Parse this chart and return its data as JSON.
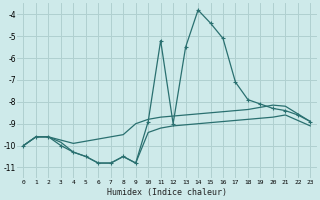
{
  "xlabel": "Humidex (Indice chaleur)",
  "bg_color": "#ceeaea",
  "grid_color": "#b0d0d0",
  "line_color": "#2a7070",
  "y_main": [
    -10.0,
    -9.6,
    -9.6,
    -10.0,
    -10.3,
    -10.5,
    -10.8,
    -10.8,
    -10.5,
    -10.8,
    -8.9,
    -5.2,
    -9.0,
    -5.5,
    -3.8,
    -4.4,
    -5.1,
    -7.1,
    -7.9,
    -8.1,
    -8.3,
    -8.4,
    -8.6,
    -8.9
  ],
  "y_upper": [
    -10.0,
    -9.6,
    -9.6,
    -9.75,
    -9.9,
    -9.8,
    -9.7,
    -9.6,
    -9.5,
    -9.0,
    -8.8,
    -8.7,
    -8.65,
    -8.6,
    -8.55,
    -8.5,
    -8.45,
    -8.4,
    -8.35,
    -8.25,
    -8.15,
    -8.2,
    -8.55,
    -8.9
  ],
  "y_lower": [
    -10.0,
    -9.6,
    -9.6,
    -9.85,
    -10.3,
    -10.5,
    -10.8,
    -10.8,
    -10.5,
    -10.8,
    -9.4,
    -9.2,
    -9.1,
    -9.05,
    -9.0,
    -8.95,
    -8.9,
    -8.85,
    -8.8,
    -8.75,
    -8.7,
    -8.6,
    -8.85,
    -9.1
  ],
  "xlim": [
    -0.5,
    23.5
  ],
  "ylim": [
    -11.5,
    -3.5
  ],
  "yticks": [
    -11,
    -10,
    -9,
    -8,
    -7,
    -6,
    -5,
    -4
  ],
  "xticks": [
    0,
    1,
    2,
    3,
    4,
    5,
    6,
    7,
    8,
    9,
    10,
    11,
    12,
    13,
    14,
    15,
    16,
    17,
    18,
    19,
    20,
    21,
    22,
    23
  ]
}
